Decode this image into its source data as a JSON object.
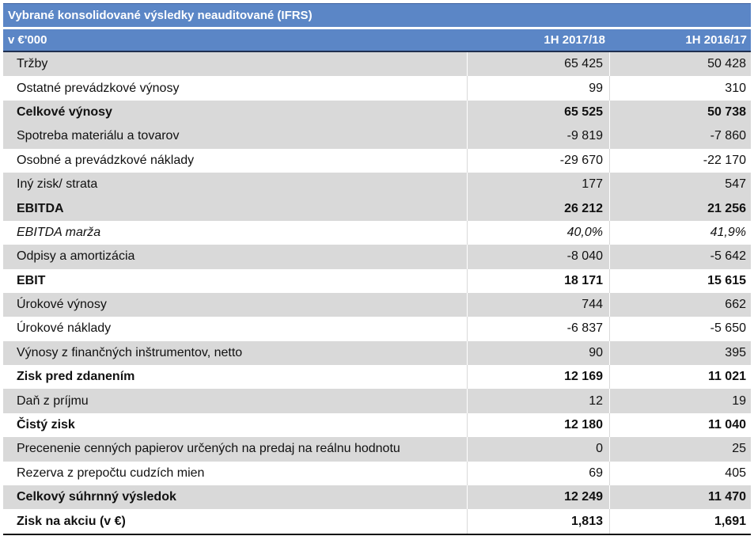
{
  "table": {
    "title": "Vybrané konsolidované výsledky neauditované (IFRS)",
    "header": {
      "unit": "v €'000",
      "col1": "1H  2017/18",
      "col2": "1H  2016/17"
    },
    "rows": [
      {
        "label": "Tržby",
        "v1": "65 425",
        "v2": "50 428",
        "bold": false,
        "italic": false
      },
      {
        "label": "Ostatné prevádzkové výnosy",
        "v1": "99",
        "v2": "310",
        "bold": false,
        "italic": false
      },
      {
        "label": "Celkové výnosy",
        "v1": "65 525",
        "v2": "50 738",
        "bold": true,
        "italic": false
      },
      {
        "label": "Spotreba materiálu a tovarov",
        "v1": "-9 819",
        "v2": "-7 860",
        "bold": false,
        "italic": false
      },
      {
        "label": "Osobné a prevádzkové náklady",
        "v1": "-29 670",
        "v2": "-22 170",
        "bold": false,
        "italic": false
      },
      {
        "label": "Iný zisk/ strata",
        "v1": "177",
        "v2": "547",
        "bold": false,
        "italic": false
      },
      {
        "label": "EBITDA",
        "v1": "26 212",
        "v2": "21 256",
        "bold": true,
        "italic": false
      },
      {
        "label": "EBITDA marža",
        "v1": "40,0%",
        "v2": "41,9%",
        "bold": false,
        "italic": true
      },
      {
        "label": "Odpisy a amortizácia",
        "v1": "-8 040",
        "v2": "-5 642",
        "bold": false,
        "italic": false
      },
      {
        "label": "EBIT",
        "v1": "18 171",
        "v2": "15 615",
        "bold": true,
        "italic": false
      },
      {
        "label": "Úrokové výnosy",
        "v1": "744",
        "v2": "662",
        "bold": false,
        "italic": false
      },
      {
        "label": "Úrokové náklady",
        "v1": "-6 837",
        "v2": "-5 650",
        "bold": false,
        "italic": false
      },
      {
        "label": "Výnosy z finančných inštrumentov, netto",
        "v1": "90",
        "v2": "395",
        "bold": false,
        "italic": false
      },
      {
        "label": "Zisk pred zdanením",
        "v1": "12 169",
        "v2": "11 021",
        "bold": true,
        "italic": false
      },
      {
        "label": "Daň z príjmu",
        "v1": "12",
        "v2": "19",
        "bold": false,
        "italic": false
      },
      {
        "label": "Čistý zisk",
        "v1": "12 180",
        "v2": "11 040",
        "bold": true,
        "italic": false
      },
      {
        "label": "Precenenie cenných papierov určených na predaj  na reálnu hodnotu",
        "v1": "0",
        "v2": "25",
        "bold": false,
        "italic": false
      },
      {
        "label": "Rezerva z prepočtu cudzích mien",
        "v1": "69",
        "v2": "405",
        "bold": false,
        "italic": false
      },
      {
        "label": "Celkový súhrnný výsledok",
        "v1": "12 249",
        "v2": "11 470",
        "bold": true,
        "italic": false
      },
      {
        "label": "Zisk na akciu (v €)",
        "v1": "1,813",
        "v2": "1,691",
        "bold": true,
        "italic": false
      }
    ]
  }
}
